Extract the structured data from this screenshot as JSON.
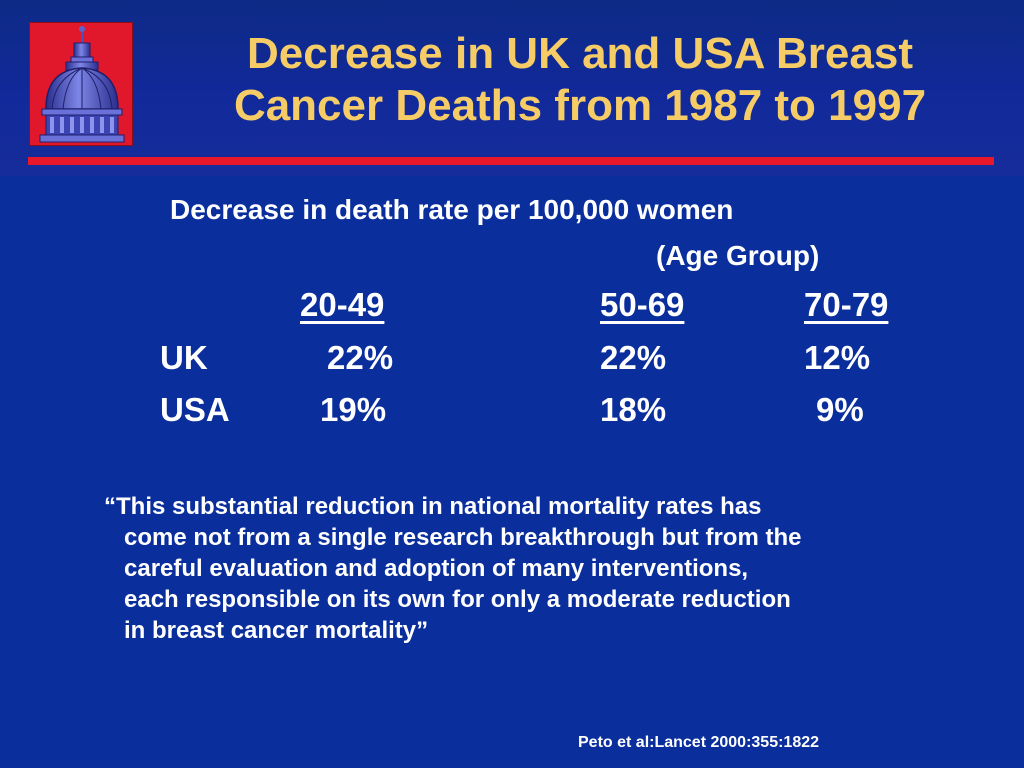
{
  "slide": {
    "title_line1": "Decrease in UK and USA Breast",
    "title_line2": "Cancer Deaths from 1987 to 1997",
    "logo_icon": "capitol-dome-icon",
    "subtitle_line1": "Decrease in death rate per 100,000 women",
    "subtitle_line2": "(Age Group)"
  },
  "table": {
    "headers": [
      "20-49",
      "50-69",
      "70-79"
    ],
    "rows": [
      {
        "label": "UK",
        "values": [
          "22%",
          "22%",
          "12%"
        ]
      },
      {
        "label": "USA",
        "values": [
          "19%",
          "18%",
          "9%"
        ]
      }
    ]
  },
  "quote": {
    "text": "“This substantial reduction in national mortality rates has\n   come not from a single research breakthrough but from the\n   careful evaluation and adoption of many interventions,\n   each responsible on its own for only a moderate reduction\n   in breast cancer mortality”"
  },
  "citation": "Peto et al:Lancet 2000:355:1822",
  "colors": {
    "background": "#0a2e9c",
    "title": "#f6cc66",
    "accent_rule": "#e8182a",
    "logo_background": "#e1182c",
    "body_text": "#ffffff"
  }
}
